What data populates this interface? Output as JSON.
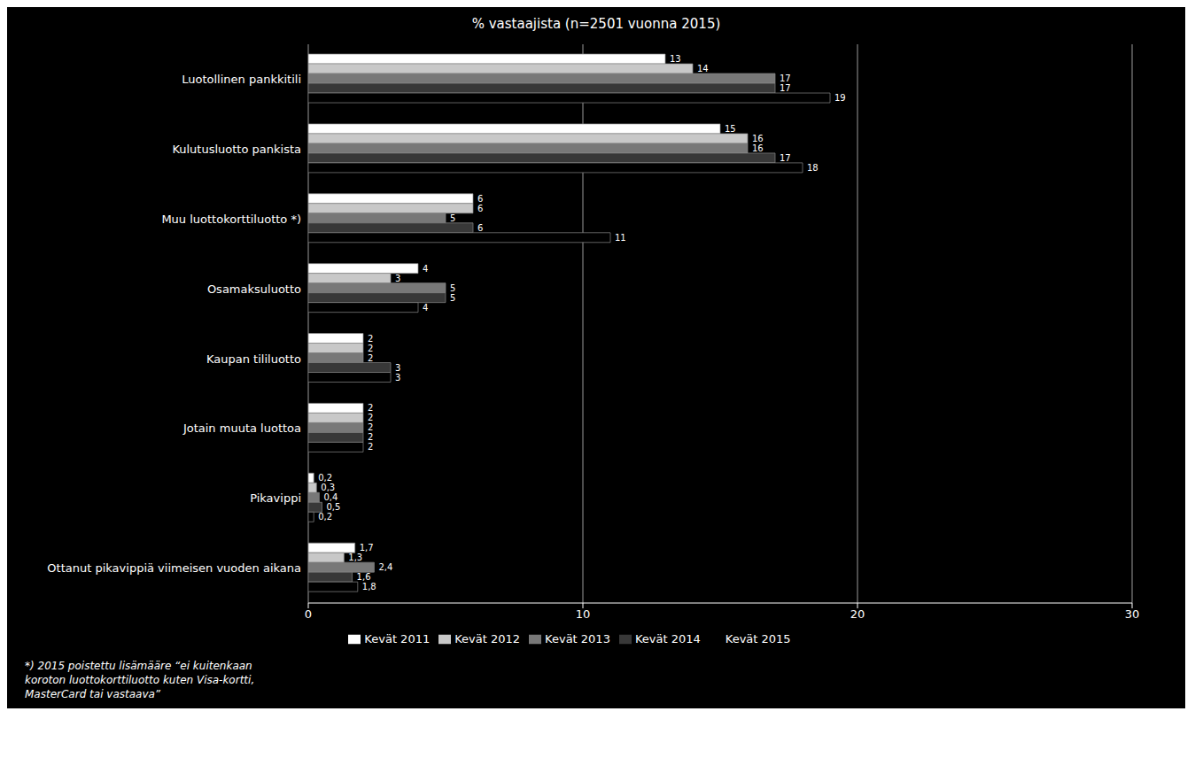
{
  "chart_data": {
    "type": "bar",
    "orientation": "horizontal",
    "title": "% vastaajista (n=2501 vuonna 2015)",
    "categories": [
      "Luotollinen pankkitili",
      "Kulutusluotto pankista",
      "Muu luottokorttiluotto *)",
      "Osamaksuluotto",
      "Kaupan tililuotto",
      "Jotain muuta luottoa",
      "Pikavippi",
      "Ottanut pikavippiä viimeisen vuoden aikana"
    ],
    "series": [
      {
        "name": "Kevät 2011",
        "color": "#ffffff",
        "values": [
          13,
          15,
          6,
          4,
          2,
          2,
          0.2,
          1.7
        ],
        "value_labels": [
          "13",
          "15",
          "6",
          "4",
          "2",
          "2",
          "0,2",
          "1,7"
        ]
      },
      {
        "name": "Kevät 2012",
        "color": "#c8c8c8",
        "values": [
          14,
          16,
          6,
          3,
          2,
          2,
          0.3,
          1.3
        ],
        "value_labels": [
          "14",
          "16",
          "6",
          "3",
          "2",
          "2",
          "0,3",
          "1,3"
        ]
      },
      {
        "name": "Kevät 2013",
        "color": "#787878",
        "values": [
          17,
          16,
          5,
          5,
          2,
          2,
          0.4,
          2.4
        ],
        "value_labels": [
          "17",
          "16",
          "5",
          "5",
          "2",
          "2",
          "0,4",
          "2,4"
        ]
      },
      {
        "name": "Kevät 2014",
        "color": "#383838",
        "values": [
          17,
          17,
          6,
          5,
          3,
          2,
          0.5,
          1.6
        ],
        "value_labels": [
          "17",
          "17",
          "6",
          "5",
          "3",
          "2",
          "0,5",
          "1,6"
        ]
      },
      {
        "name": "Kevät 2015",
        "color": "#000000",
        "values": [
          19,
          18,
          11,
          4,
          3,
          2,
          0.2,
          1.8
        ],
        "value_labels": [
          "19",
          "18",
          "11",
          "4",
          "3",
          "2",
          "0,2",
          "1,8"
        ]
      }
    ],
    "xlim": [
      0,
      30
    ],
    "xticks": [
      0,
      10,
      20,
      30
    ],
    "data_labels": true,
    "grid": true,
    "legend": "bottom",
    "annotations": [
      "*) 2015 poistettu lisämääre “ei kuitenkaan\nkoroton luottokorttiluotto kuten Visa-kortti,\nMasterCard tai vastaava”"
    ]
  }
}
